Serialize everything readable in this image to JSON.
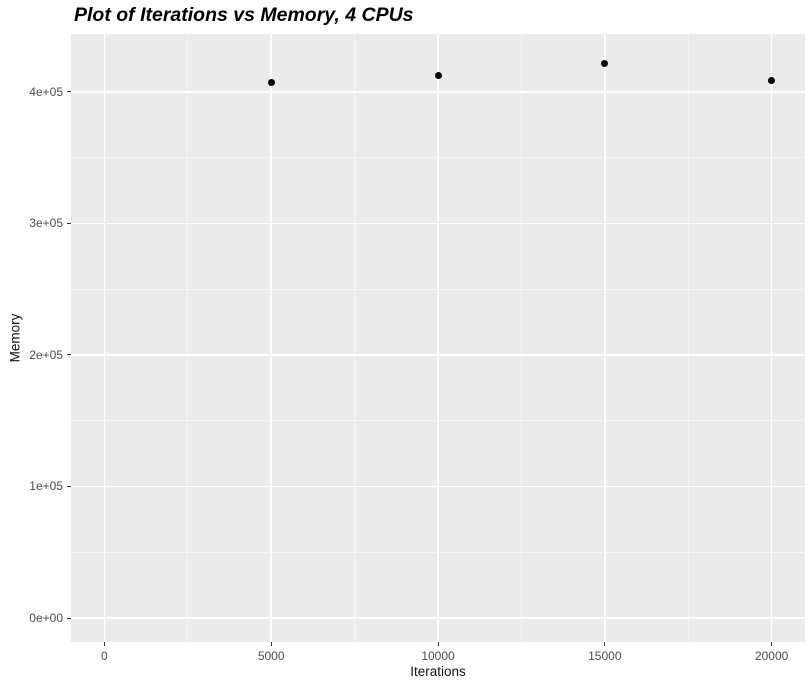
{
  "chart_data": {
    "type": "scatter",
    "title": "Plot of Iterations vs Memory, 4 CPUs",
    "xlabel": "Iterations",
    "ylabel": "Memory",
    "x": [
      5000,
      10000,
      15000,
      20000
    ],
    "y": [
      406900,
      412200,
      421300,
      408400
    ],
    "xlim": [
      -1000,
      21000
    ],
    "ylim": [
      -18250,
      444100
    ],
    "x_ticks": {
      "values": [
        0,
        5000,
        10000,
        15000,
        20000
      ],
      "labels": [
        "0",
        "5000",
        "10000",
        "15000",
        "20000"
      ]
    },
    "y_ticks": {
      "values": [
        0,
        100000,
        200000,
        300000,
        400000
      ],
      "labels": [
        "0e+00",
        "1e+05",
        "2e+05",
        "3e+05",
        "4e+05"
      ]
    },
    "x_minor": [
      2500,
      7500,
      12500,
      17500
    ],
    "y_minor": [
      50000,
      150000,
      250000,
      350000
    ],
    "grid": true,
    "legend": false,
    "panel_bg": "#EBEBEB",
    "grid_major_color": "#FFFFFF",
    "grid_minor_color": "rgba(255,255,255,0.55)",
    "point_color": "#000000",
    "tick_color": "#333333",
    "tick_label_color": "#4D4D4D"
  }
}
